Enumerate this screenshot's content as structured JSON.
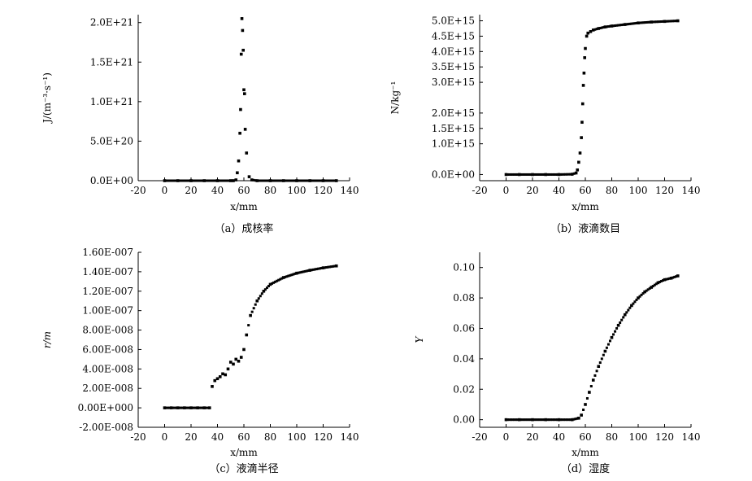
{
  "chart_data": [
    {
      "type": "scatter",
      "caption": "（a）成核率",
      "ylabel": "J/(m⁻³·s⁻¹)",
      "xlabel": "x/mm",
      "xlim": [
        -20,
        140
      ],
      "ylim": [
        0,
        2.1e+21
      ],
      "xticks": [
        "-20",
        "0",
        "20",
        "40",
        "60",
        "80",
        "100",
        "120",
        "140"
      ],
      "yticks": [
        {
          "v": 0,
          "label": "0.0E+00"
        },
        {
          "v": 5e+20,
          "label": "5.0E+20"
        },
        {
          "v": 1e+21,
          "label": "1.0E+21"
        },
        {
          "v": 1.5e+21,
          "label": "1.5E+21"
        },
        {
          "v": 2e+21,
          "label": "2.0E+21"
        }
      ],
      "series": [
        {
          "x": [
            0,
            10,
            20,
            30,
            40,
            50,
            52,
            54,
            55,
            56,
            57,
            57.5,
            58,
            58.5,
            59,
            59.5,
            60,
            60.5,
            61,
            62,
            64,
            66,
            70,
            80,
            90,
            100,
            110,
            120,
            130
          ],
          "y": [
            0,
            0,
            0,
            0,
            0,
            0,
            0,
            1e+19,
            1e+20,
            2.5e+20,
            6e+20,
            9e+20,
            1.6e+21,
            2.05e+21,
            1.9e+21,
            1.65e+21,
            1.15e+21,
            1.1e+21,
            6.5e+20,
            3.5e+20,
            5e+19,
            1e+19,
            0,
            0,
            0,
            0,
            0,
            0,
            0
          ]
        }
      ]
    },
    {
      "type": "scatter",
      "caption": "（b）液滴数目",
      "ylabel": "N/kg⁻¹",
      "xlabel": "x/mm",
      "xlim": [
        -20,
        140
      ],
      "ylim": [
        -200000000000000.0,
        5200000000000000.0
      ],
      "xticks": [
        "-20",
        "0",
        "20",
        "40",
        "60",
        "80",
        "100",
        "120",
        "140"
      ],
      "yticks": [
        {
          "v": 0,
          "label": "0.0E+00"
        },
        {
          "v": 1000000000000000.0,
          "label": "1.0E+15"
        },
        {
          "v": 1500000000000000.0,
          "label": "1.5E+15"
        },
        {
          "v": 2000000000000000.0,
          "label": "2.0E+15"
        },
        {
          "v": 3000000000000000.0,
          "label": "3.0E+15"
        },
        {
          "v": 3500000000000000.0,
          "label": "3.5E+15"
        },
        {
          "v": 4000000000000000.0,
          "label": "4.0E+15"
        },
        {
          "v": 4500000000000000.0,
          "label": "4.5E+15"
        },
        {
          "v": 5000000000000000.0,
          "label": "5.0E+15"
        }
      ],
      "series": [
        {
          "x": [
            0,
            10,
            20,
            30,
            40,
            50,
            53,
            54,
            55,
            56,
            57,
            57.5,
            58,
            58.5,
            59,
            59.5,
            60,
            61,
            62,
            64,
            66,
            70,
            75,
            80,
            90,
            100,
            110,
            120,
            130
          ],
          "y": [
            0,
            0,
            0,
            0,
            0,
            10000000000000.0,
            50000000000000.0,
            150000000000000.0,
            400000000000000.0,
            700000000000000.0,
            1200000000000000.0,
            1700000000000000.0,
            2300000000000000.0,
            2900000000000000.0,
            3300000000000000.0,
            3800000000000000.0,
            4100000000000000.0,
            4500000000000000.0,
            4600000000000000.0,
            4650000000000000.0,
            4700000000000000.0,
            4750000000000000.0,
            4800000000000000.0,
            4830000000000000.0,
            4880000000000000.0,
            4930000000000000.0,
            4960000000000000.0,
            4980000000000000.0,
            5000000000000000.0
          ]
        }
      ]
    },
    {
      "type": "scatter",
      "caption": "（c）液滴半径",
      "ylabel": "r/m",
      "xlabel": "x/mm",
      "xlim": [
        -20,
        140
      ],
      "ylim": [
        -2e-08,
        1.6e-07
      ],
      "xticks": [
        "-20",
        "0",
        "20",
        "40",
        "60",
        "80",
        "100",
        "120",
        "140"
      ],
      "yticks": [
        {
          "v": -2e-08,
          "label": "-2.00E-008"
        },
        {
          "v": 0,
          "label": "0.00E+000"
        },
        {
          "v": 2e-08,
          "label": "2.00E-008"
        },
        {
          "v": 4e-08,
          "label": "4.00E-008"
        },
        {
          "v": 6e-08,
          "label": "6.00E-008"
        },
        {
          "v": 8e-08,
          "label": "8.00E-008"
        },
        {
          "v": 1e-07,
          "label": "1.00E-007"
        },
        {
          "v": 1.2e-07,
          "label": "1.20E-007"
        },
        {
          "v": 1.4e-07,
          "label": "1.40E-007"
        },
        {
          "v": 1.6e-07,
          "label": "1.60E-007"
        }
      ],
      "series": [
        {
          "x": [
            0,
            5,
            10,
            15,
            20,
            25,
            30,
            34,
            36,
            38,
            40,
            42,
            44,
            46,
            48,
            50,
            52,
            54,
            56,
            58,
            60,
            62,
            65,
            70,
            75,
            80,
            90,
            100,
            110,
            120,
            130
          ],
          "y": [
            0,
            0,
            0,
            0,
            0,
            0,
            0,
            0,
            2.2e-08,
            2.8e-08,
            3e-08,
            3.2e-08,
            3.5e-08,
            3.4e-08,
            4e-08,
            4.7e-08,
            4.5e-08,
            5e-08,
            4.8e-08,
            5.2e-08,
            6e-08,
            7.5e-08,
            9.5e-08,
            1.1e-07,
            1.2e-07,
            1.27e-07,
            1.34e-07,
            1.385e-07,
            1.415e-07,
            1.44e-07,
            1.46e-07
          ]
        }
      ]
    },
    {
      "type": "scatter",
      "caption": "（d）湿度",
      "ylabel": "Y",
      "xlabel": "x/mm",
      "xlim": [
        -20,
        140
      ],
      "ylim": [
        -0.005,
        0.11
      ],
      "xticks": [
        "-20",
        "0",
        "20",
        "40",
        "60",
        "80",
        "100",
        "120",
        "140"
      ],
      "yticks": [
        {
          "v": 0,
          "label": "0.00"
        },
        {
          "v": 0.02,
          "label": "0.02"
        },
        {
          "v": 0.04,
          "label": "0.04"
        },
        {
          "v": 0.06,
          "label": "0.06"
        },
        {
          "v": 0.08,
          "label": "0.08"
        },
        {
          "v": 0.1,
          "label": "0.10"
        }
      ],
      "series": [
        {
          "x": [
            0,
            10,
            20,
            30,
            40,
            50,
            55,
            57,
            60,
            63,
            66,
            70,
            75,
            80,
            85,
            90,
            95,
            100,
            105,
            110,
            115,
            120,
            125,
            130
          ],
          "y": [
            0,
            0,
            0,
            0,
            0,
            0,
            0.001,
            0.003,
            0.01,
            0.018,
            0.026,
            0.035,
            0.045,
            0.054,
            0.062,
            0.069,
            0.075,
            0.08,
            0.084,
            0.087,
            0.09,
            0.092,
            0.093,
            0.0945
          ]
        }
      ]
    }
  ]
}
